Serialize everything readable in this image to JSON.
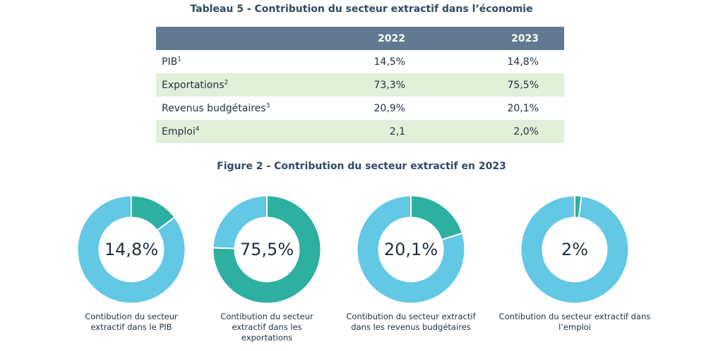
{
  "table": {
    "title": "Tableau 5 - Contribution du secteur extractif dans l’économie",
    "columns": [
      "",
      "2022",
      "2023"
    ],
    "rows": [
      {
        "label": "PIB",
        "note": "1",
        "v2022": "14,5%",
        "v2023": "14,8%"
      },
      {
        "label": "Exportations",
        "note": "2",
        "v2022": "73,3%",
        "v2023": "75,5%"
      },
      {
        "label": "Revenus budgétaires",
        "note": "3",
        "v2022": "20,9%",
        "v2023": "20,1%"
      },
      {
        "label": "Emploi",
        "note": "4",
        "v2022": "2,1",
        "v2023": "2,0%"
      }
    ]
  },
  "figure": {
    "title": "Figure 2 - Contribution du secteur extractif en 2023"
  },
  "colors": {
    "header_bg": "#627991",
    "row_alt": "#e2efd9",
    "share": "#2eb0a0",
    "rest": "#62c8e4"
  },
  "chart_data": {
    "type": "pie",
    "title": "Figure 2 - Contribution du secteur extractif en 2023",
    "charts": [
      {
        "value": 14.8,
        "label": "14,8%",
        "caption_lines": [
          "Contibution du secteur",
          "extractif dans le PIB"
        ]
      },
      {
        "value": 75.5,
        "label": "75,5%",
        "caption_lines": [
          "Contibution du secteur",
          "extractif dans les",
          "exportations"
        ]
      },
      {
        "value": 20.1,
        "label": "20,1%",
        "caption_lines": [
          "Contibution du secteur extractif",
          "dans les revenus budgétaires"
        ]
      },
      {
        "value": 2.0,
        "label": "2%",
        "caption_lines": [
          "Contibution du secteur extractif dans",
          "l’emploi"
        ]
      }
    ]
  }
}
